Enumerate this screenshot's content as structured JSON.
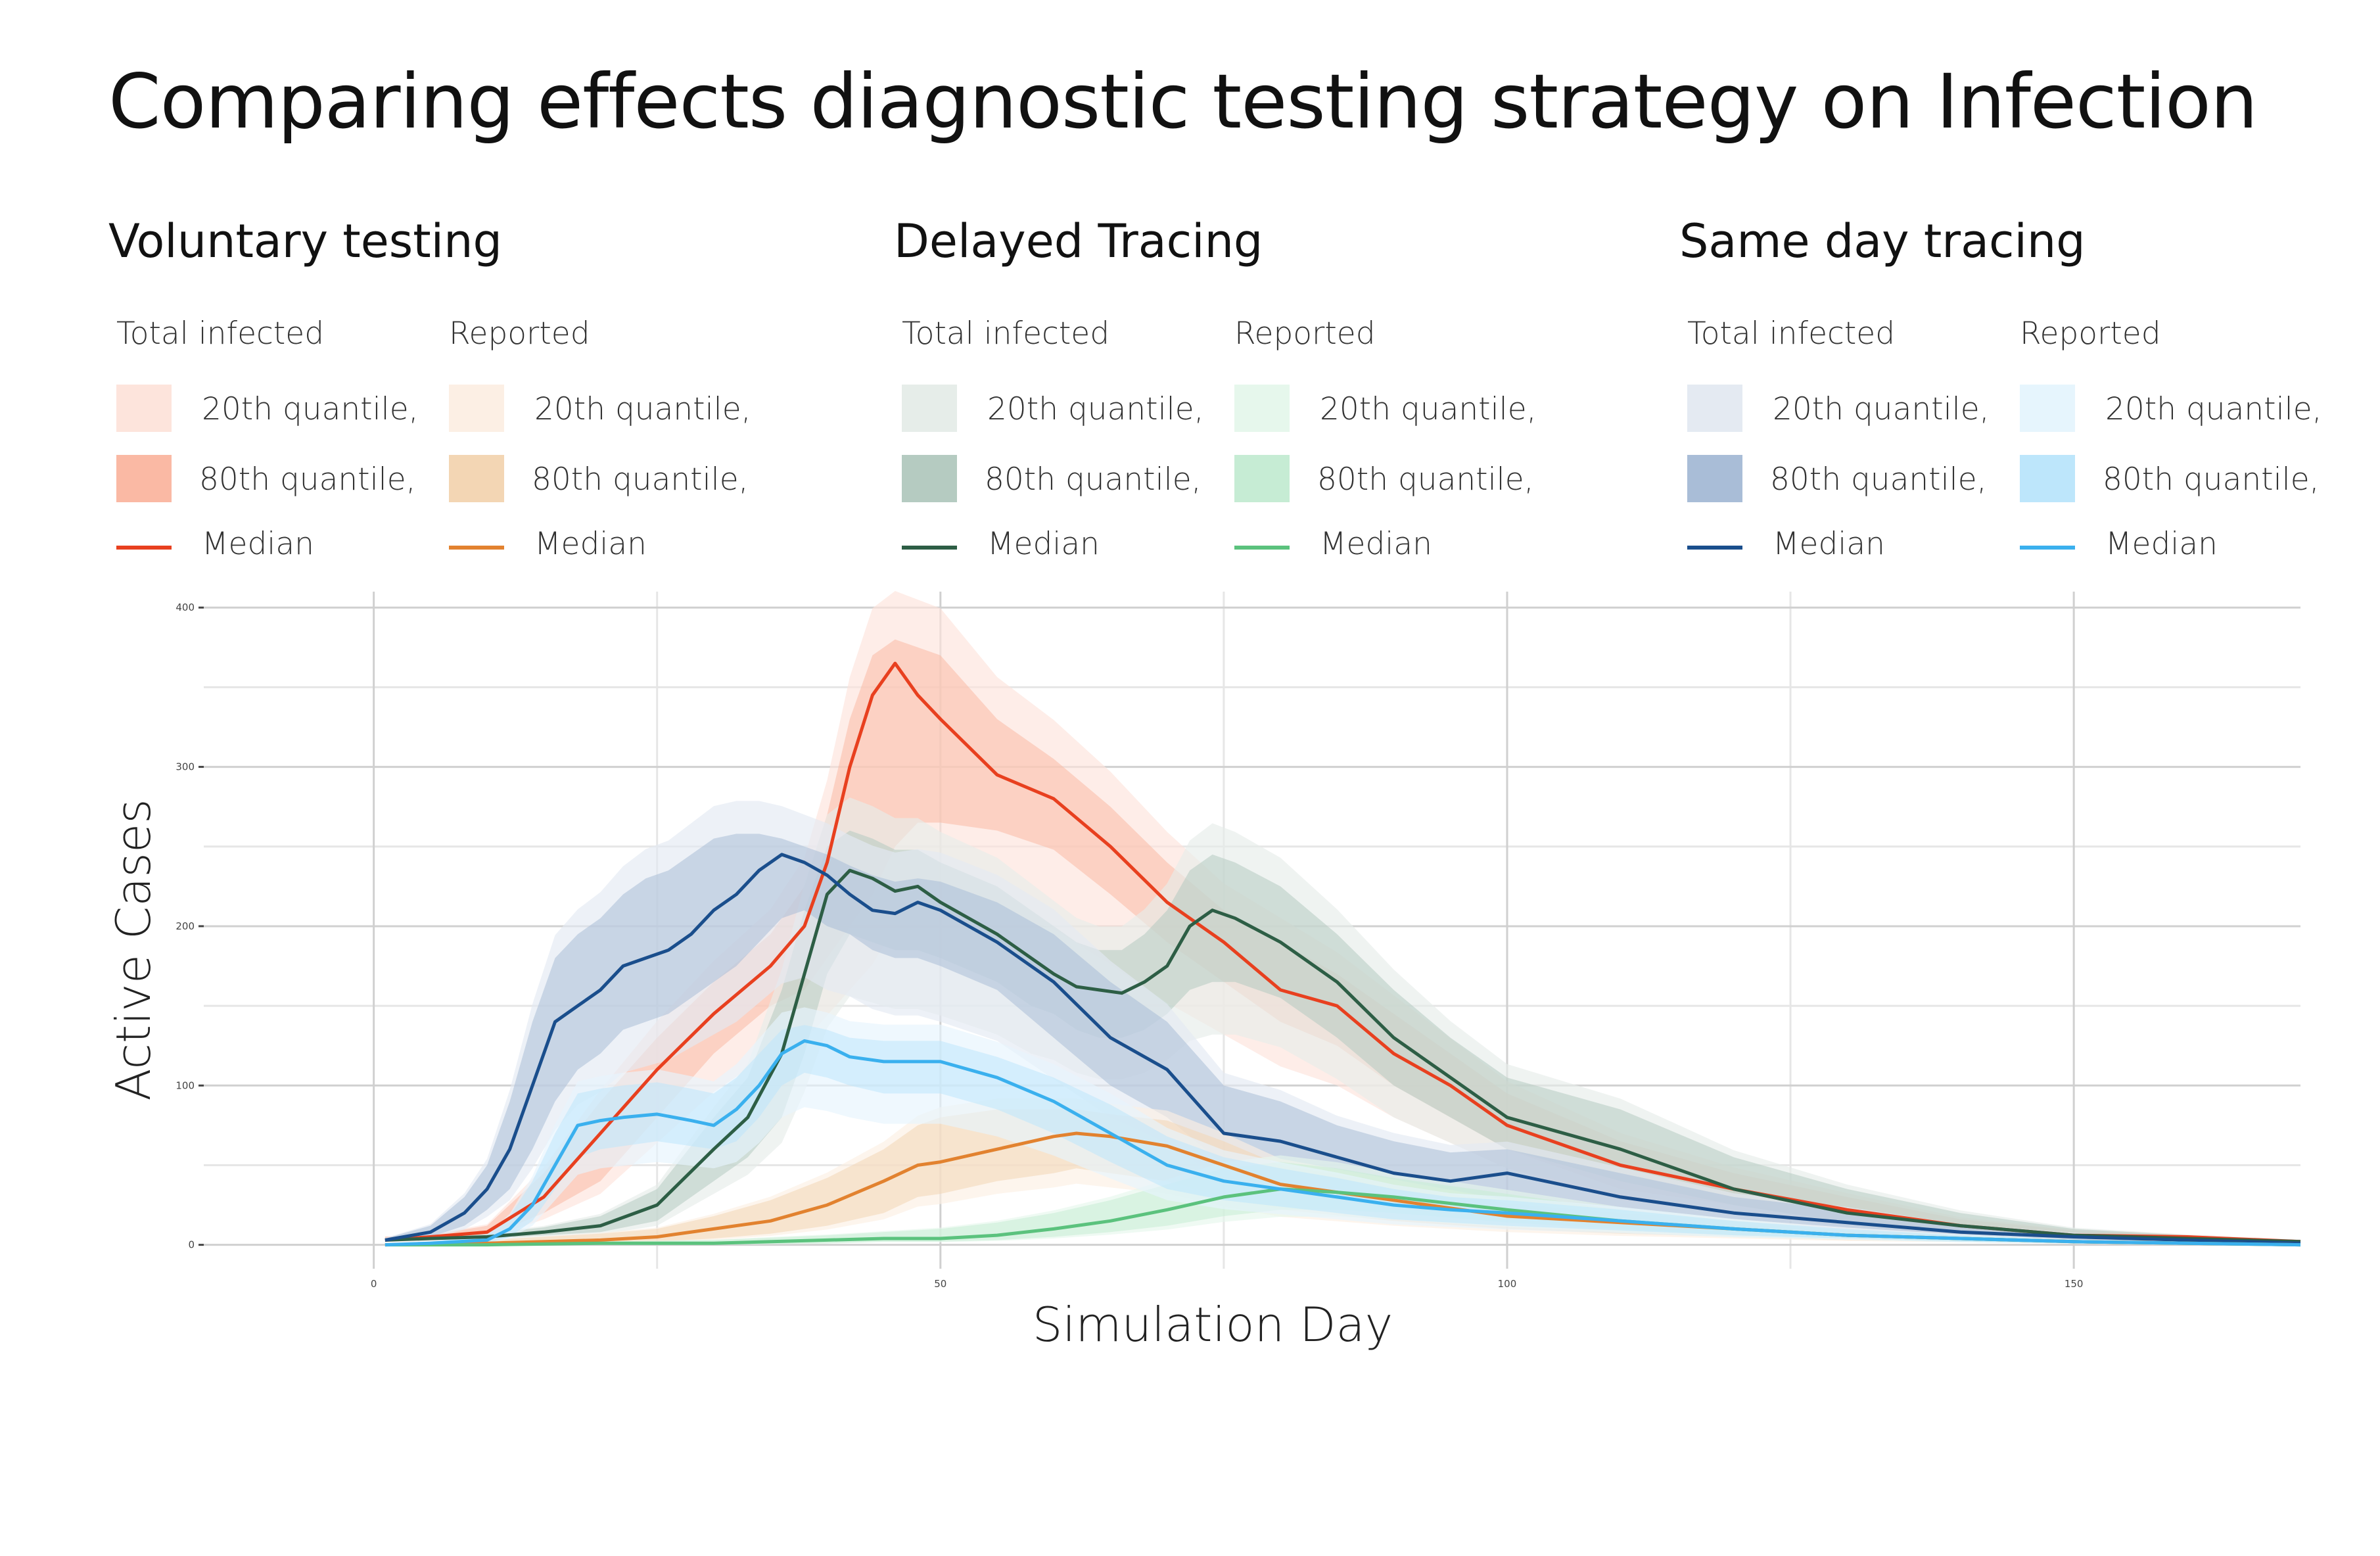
{
  "title": "Comparing effects diagnostic testing strategy on Infection",
  "legend": {
    "groups": [
      {
        "title": "Voluntary testing",
        "columns": [
          {
            "heading": "Total infected",
            "q20": "20th quantile,",
            "q80": "80th quantile,",
            "median": "Median",
            "q20_color": "#fde4dc",
            "q80_color": "#fab9a4",
            "median_color": "#e8401f"
          },
          {
            "heading": "Reported",
            "q20": "20th quantile,",
            "q80": "80th quantile,",
            "median": "Median",
            "q20_color": "#fcefe4",
            "q80_color": "#f3d6b4",
            "median_color": "#e2822f"
          }
        ]
      },
      {
        "title": "Delayed Tracing",
        "columns": [
          {
            "heading": "Total infected",
            "q20": "20th quantile,",
            "q80": "80th quantile,",
            "median": "Median",
            "q20_color": "#e6ede9",
            "q80_color": "#b5cbc1",
            "median_color": "#2d5e45"
          },
          {
            "heading": "Reported",
            "q20": "20th quantile,",
            "q80": "80th quantile,",
            "median": "Median",
            "q20_color": "#e6f7ec",
            "q80_color": "#c6ecd4",
            "median_color": "#5bc27d"
          }
        ]
      },
      {
        "title": "Same day tracing",
        "columns": [
          {
            "heading": "Total infected",
            "q20": "20th quantile,",
            "q80": "80th quantile,",
            "median": "Median",
            "q20_color": "#e4eaf2",
            "q80_color": "#a9bdd7",
            "median_color": "#1a4e8c"
          },
          {
            "heading": "Reported",
            "q20": "20th quantile,",
            "q80": "80th quantile,",
            "median": "Median",
            "q20_color": "#e6f5fd",
            "q80_color": "#bde6fb",
            "median_color": "#3ab0ee"
          }
        ]
      }
    ]
  },
  "chart_data": {
    "type": "line",
    "xlabel": "Simulation Day",
    "ylabel": "Active Cases",
    "xlim": [
      -15,
      170
    ],
    "ylim": [
      -15,
      410
    ],
    "xticks": [
      0,
      50,
      100,
      150
    ],
    "yticks": [
      0,
      100,
      200,
      300,
      400
    ],
    "grid": true,
    "series": [
      {
        "name": "Voluntary testing - Total infected",
        "median_color": "#e8401f",
        "q80_color": "#fab9a4",
        "q20_color": "#fde4dc",
        "x": [
          1,
          5,
          10,
          15,
          20,
          25,
          30,
          35,
          38,
          40,
          42,
          44,
          46,
          48,
          50,
          55,
          60,
          65,
          70,
          75,
          80,
          85,
          90,
          95,
          100,
          110,
          120,
          130,
          140,
          150,
          160,
          170
        ],
        "median": [
          3,
          5,
          8,
          30,
          70,
          110,
          145,
          175,
          200,
          240,
          300,
          345,
          365,
          345,
          330,
          295,
          280,
          250,
          215,
          190,
          160,
          150,
          120,
          100,
          75,
          50,
          35,
          22,
          12,
          6,
          5,
          2
        ],
        "lo": [
          2,
          3,
          5,
          20,
          40,
          80,
          120,
          150,
          160,
          180,
          200,
          220,
          250,
          265,
          265,
          260,
          248,
          220,
          190,
          165,
          140,
          125,
          100,
          80,
          60,
          35,
          25,
          15,
          8,
          4,
          3,
          1
        ],
        "hi": [
          5,
          6,
          12,
          45,
          90,
          130,
          165,
          195,
          225,
          270,
          330,
          370,
          380,
          375,
          370,
          330,
          305,
          275,
          240,
          210,
          190,
          170,
          145,
          120,
          95,
          65,
          45,
          30,
          16,
          9,
          6,
          3
        ]
      },
      {
        "name": "Delayed Tracing - Total infected",
        "median_color": "#2d5e45",
        "q80_color": "#b5cbc1",
        "q20_color": "#e6ede9",
        "x": [
          1,
          5,
          10,
          15,
          20,
          25,
          30,
          33,
          36,
          38,
          40,
          42,
          44,
          46,
          48,
          50,
          55,
          58,
          60,
          62,
          64,
          66,
          68,
          70,
          72,
          74,
          76,
          80,
          85,
          90,
          95,
          100,
          110,
          120,
          130,
          140,
          150,
          160,
          170
        ],
        "median": [
          3,
          4,
          5,
          8,
          12,
          25,
          60,
          80,
          120,
          170,
          220,
          235,
          230,
          222,
          225,
          215,
          195,
          180,
          170,
          162,
          160,
          158,
          165,
          175,
          200,
          210,
          205,
          190,
          165,
          130,
          105,
          80,
          60,
          35,
          20,
          12,
          6,
          4,
          2
        ],
        "lo": [
          2,
          3,
          4,
          6,
          8,
          15,
          40,
          55,
          80,
          120,
          170,
          195,
          190,
          185,
          185,
          180,
          165,
          150,
          145,
          135,
          130,
          130,
          135,
          145,
          160,
          165,
          165,
          155,
          130,
          100,
          80,
          60,
          40,
          25,
          14,
          8,
          4,
          3,
          1
        ],
        "hi": [
          4,
          5,
          7,
          11,
          18,
          35,
          80,
          105,
          160,
          210,
          250,
          260,
          255,
          248,
          248,
          240,
          225,
          210,
          200,
          190,
          185,
          185,
          195,
          210,
          235,
          245,
          240,
          225,
          195,
          160,
          130,
          105,
          85,
          55,
          35,
          20,
          10,
          6,
          3
        ]
      },
      {
        "name": "Same day tracing - Total infected",
        "median_color": "#1a4e8c",
        "q80_color": "#a9bdd7",
        "q20_color": "#e4eaf2",
        "x": [
          1,
          5,
          8,
          10,
          12,
          14,
          16,
          18,
          20,
          22,
          24,
          26,
          28,
          30,
          32,
          34,
          36,
          38,
          40,
          42,
          44,
          46,
          48,
          50,
          55,
          60,
          65,
          70,
          75,
          80,
          85,
          90,
          95,
          100,
          110,
          120,
          130,
          140,
          150,
          160,
          170
        ],
        "median": [
          3,
          8,
          20,
          35,
          60,
          100,
          140,
          150,
          160,
          175,
          180,
          185,
          195,
          210,
          220,
          235,
          245,
          240,
          232,
          220,
          210,
          208,
          215,
          210,
          190,
          165,
          130,
          110,
          70,
          65,
          55,
          45,
          40,
          45,
          30,
          20,
          14,
          8,
          5,
          3,
          1
        ],
        "lo": [
          2,
          5,
          12,
          22,
          35,
          60,
          90,
          110,
          120,
          135,
          140,
          145,
          155,
          165,
          175,
          190,
          205,
          210,
          200,
          195,
          185,
          180,
          180,
          175,
          160,
          130,
          100,
          80,
          50,
          45,
          35,
          28,
          25,
          25,
          18,
          12,
          8,
          5,
          3,
          2,
          1
        ],
        "hi": [
          4,
          12,
          30,
          50,
          90,
          140,
          180,
          195,
          205,
          220,
          230,
          235,
          245,
          255,
          258,
          258,
          255,
          250,
          245,
          238,
          232,
          228,
          230,
          228,
          215,
          195,
          165,
          140,
          100,
          90,
          75,
          65,
          58,
          60,
          45,
          30,
          22,
          12,
          7,
          4,
          2
        ]
      },
      {
        "name": "Voluntary testing - Reported",
        "median_color": "#e2822f",
        "q80_color": "#f3d6b4",
        "q20_color": "#fcefe4",
        "x": [
          1,
          10,
          20,
          25,
          30,
          35,
          40,
          45,
          48,
          50,
          55,
          60,
          62,
          65,
          70,
          75,
          80,
          90,
          100,
          110,
          120,
          130,
          140,
          150,
          160,
          170
        ],
        "median": [
          0,
          1,
          3,
          5,
          10,
          15,
          25,
          40,
          50,
          52,
          60,
          68,
          70,
          68,
          62,
          50,
          38,
          28,
          18,
          14,
          10,
          6,
          4,
          2,
          1,
          0
        ],
        "lo": [
          0,
          0,
          1,
          2,
          4,
          7,
          12,
          20,
          30,
          32,
          40,
          45,
          48,
          45,
          40,
          30,
          22,
          15,
          10,
          7,
          5,
          3,
          2,
          1,
          0,
          0
        ],
        "hi": [
          1,
          3,
          7,
          10,
          18,
          28,
          42,
          60,
          75,
          80,
          85,
          85,
          85,
          82,
          78,
          65,
          50,
          38,
          26,
          20,
          15,
          10,
          6,
          3,
          2,
          1
        ]
      },
      {
        "name": "Delayed Tracing - Reported",
        "median_color": "#5bc27d",
        "q80_color": "#c6ecd4",
        "q20_color": "#e6f7ec",
        "x": [
          1,
          10,
          20,
          30,
          40,
          45,
          50,
          55,
          60,
          65,
          70,
          75,
          80,
          85,
          90,
          100,
          110,
          120,
          130,
          140,
          150,
          160,
          170
        ],
        "median": [
          0,
          0,
          1,
          1,
          3,
          4,
          4,
          6,
          10,
          15,
          22,
          30,
          35,
          33,
          30,
          22,
          15,
          10,
          6,
          4,
          2,
          1,
          0
        ],
        "lo": [
          0,
          0,
          0,
          0,
          1,
          2,
          2,
          3,
          5,
          8,
          12,
          18,
          22,
          22,
          20,
          14,
          10,
          6,
          4,
          2,
          1,
          0,
          0
        ],
        "hi": [
          1,
          1,
          2,
          3,
          6,
          8,
          10,
          14,
          20,
          28,
          38,
          48,
          52,
          48,
          42,
          32,
          22,
          15,
          9,
          6,
          3,
          2,
          1
        ]
      },
      {
        "name": "Same day tracing - Reported",
        "median_color": "#3ab0ee",
        "q80_color": "#bde6fb",
        "q20_color": "#e6f5fd",
        "x": [
          1,
          5,
          10,
          12,
          14,
          16,
          18,
          20,
          22,
          25,
          28,
          30,
          32,
          34,
          36,
          38,
          40,
          42,
          45,
          48,
          50,
          55,
          60,
          65,
          70,
          75,
          80,
          85,
          90,
          95,
          100,
          110,
          120,
          130,
          140,
          150,
          160,
          170
        ],
        "median": [
          0,
          1,
          3,
          10,
          25,
          50,
          75,
          78,
          80,
          82,
          78,
          75,
          85,
          100,
          120,
          128,
          125,
          118,
          115,
          115,
          115,
          105,
          90,
          70,
          50,
          40,
          35,
          30,
          25,
          22,
          20,
          15,
          10,
          6,
          4,
          2,
          1,
          0
        ],
        "lo": [
          0,
          0,
          1,
          5,
          15,
          35,
          55,
          60,
          62,
          65,
          62,
          60,
          65,
          80,
          100,
          108,
          105,
          100,
          95,
          95,
          95,
          85,
          70,
          52,
          35,
          28,
          24,
          20,
          16,
          14,
          12,
          9,
          6,
          4,
          2,
          1,
          0,
          0
        ],
        "hi": [
          1,
          2,
          6,
          18,
          40,
          70,
          95,
          98,
          100,
          102,
          98,
          95,
          105,
          120,
          135,
          138,
          135,
          130,
          128,
          128,
          128,
          118,
          105,
          88,
          68,
          55,
          48,
          42,
          35,
          30,
          28,
          22,
          15,
          10,
          6,
          3,
          2,
          1
        ]
      }
    ]
  }
}
